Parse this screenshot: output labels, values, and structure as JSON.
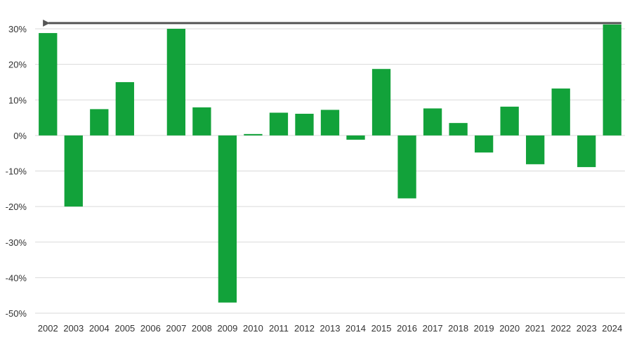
{
  "chart_data": {
    "type": "bar",
    "title": "",
    "xlabel": "",
    "ylabel": "",
    "categories": [
      "2002",
      "2003",
      "2004",
      "2005",
      "2006",
      "2007",
      "2008",
      "2009",
      "2010",
      "2011",
      "2012",
      "2013",
      "2014",
      "2015",
      "2016",
      "2017",
      "2018",
      "2019",
      "2020",
      "2021",
      "2022",
      "2023",
      "2024"
    ],
    "values": [
      28.8,
      -20.0,
      7.4,
      15.0,
      0.0,
      30.0,
      7.9,
      -47.0,
      0.4,
      6.4,
      6.1,
      7.2,
      -1.2,
      18.7,
      -17.7,
      7.6,
      3.5,
      -4.8,
      8.1,
      -8.1,
      13.2,
      -8.9,
      31.2
    ],
    "ylim": [
      -50,
      30
    ],
    "yticks": [
      30,
      20,
      10,
      0,
      -10,
      -20,
      -30,
      -40,
      -50
    ],
    "ytick_labels": [
      "30%",
      "20%",
      "10%",
      "0%",
      "-10%",
      "-20%",
      "-30%",
      "-40%",
      "-50%"
    ],
    "grid": true,
    "colors": {
      "bar": "#12a23a",
      "grid": "#d9d9d9",
      "arrow": "#555555",
      "text": "#333333"
    },
    "annotations": [
      {
        "type": "arrow",
        "from_category": "2024",
        "to_category": "2002",
        "level": 31.2
      }
    ]
  }
}
